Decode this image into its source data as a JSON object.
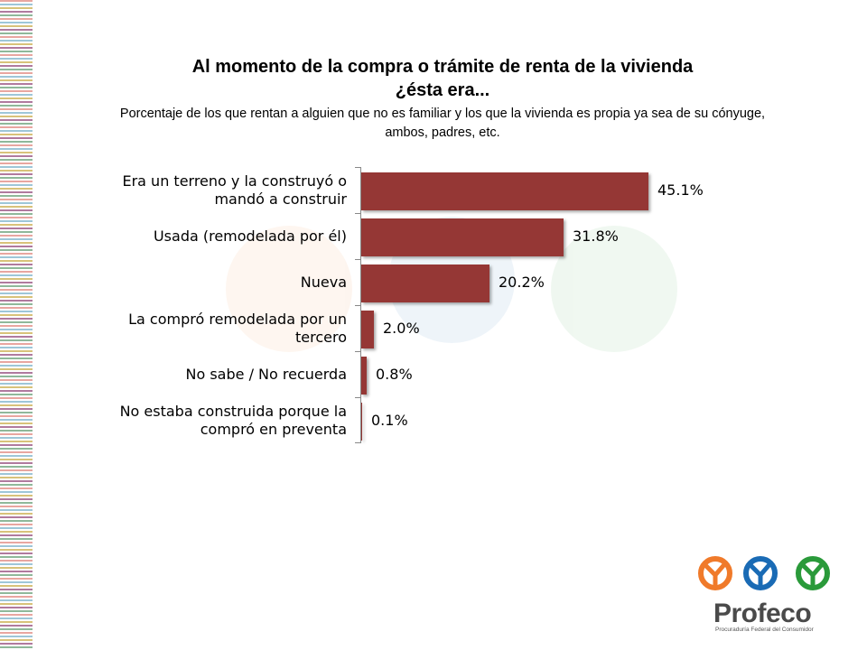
{
  "slide": {
    "title_line1": "Al momento de la compra o trámite de renta de la vivienda",
    "title_line2": "¿ésta era...",
    "subtitle": "Porcentaje de los que rentan a alguien que no es familiar y los que la vivienda es propia ya sea de su cónyuge, ambos, padres, etc."
  },
  "chart_data": {
    "type": "bar",
    "orientation": "horizontal",
    "categories": [
      "Era un terreno y la construyó o mandó a construir",
      "Usada (remodelada por él)",
      "Nueva",
      "La compró remodelada por un tercero",
      "No sabe / No recuerda",
      "No estaba construida porque la compró en preventa"
    ],
    "values": [
      45.1,
      31.8,
      20.2,
      2.0,
      0.8,
      0.1
    ],
    "value_labels": [
      "45.1%",
      "31.8%",
      "20.2%",
      "2.0%",
      "0.8%",
      "0.1%"
    ],
    "bar_color": "#953735",
    "xlim": [
      0,
      45.1
    ],
    "grid": false,
    "legend": "none"
  },
  "logo": {
    "name": "Profeco",
    "tagline": "Procuraduría Federal del Consumidor",
    "colors": [
      "#f07a2a",
      "#1a6bb5",
      "#2a9a3a"
    ]
  }
}
